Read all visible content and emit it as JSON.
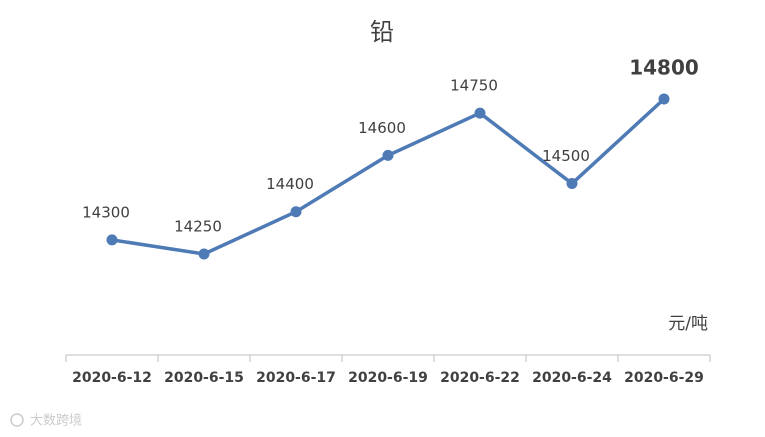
{
  "chart_data": {
    "type": "line",
    "title": "铅",
    "unit_label": "元/吨",
    "watermark": "大数跨境",
    "categories": [
      "2020-6-12",
      "2020-6-15",
      "2020-6-17",
      "2020-6-19",
      "2020-6-22",
      "2020-6-24",
      "2020-6-29"
    ],
    "values": [
      14300,
      14250,
      14400,
      14600,
      14750,
      14500,
      14800
    ],
    "color": "#4e7ab5"
  }
}
